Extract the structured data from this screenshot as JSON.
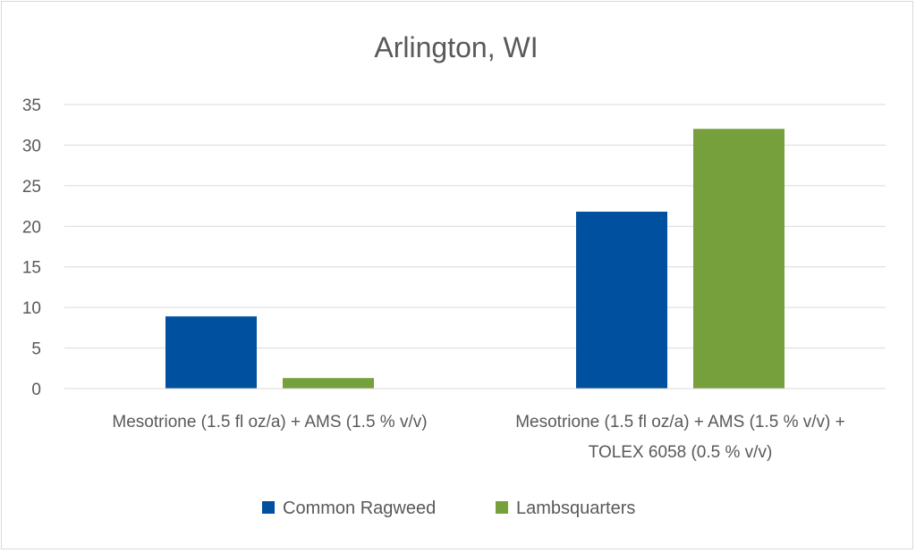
{
  "chart_data": {
    "type": "bar",
    "title": "Arlington, WI",
    "xlabel": "",
    "ylabel": "",
    "ylim": [
      0,
      35
    ],
    "yticks": [
      0,
      5,
      10,
      15,
      20,
      25,
      30,
      35
    ],
    "grid": true,
    "legend_position": "bottom",
    "categories": [
      [
        "Mesotrione (1.5 fl oz/a) +  AMS (1.5 % v/v)"
      ],
      [
        "Mesotrione (1.5 fl oz/a) +  AMS (1.5 % v/v) +",
        "TOLEX 6058 (0.5 % v/v)"
      ]
    ],
    "series": [
      {
        "name": "Common Ragweed",
        "color": "#0050A0",
        "values": [
          8.9,
          21.8
        ]
      },
      {
        "name": "Lambsquarters",
        "color": "#76A03C",
        "values": [
          1.3,
          32.0
        ]
      }
    ]
  }
}
